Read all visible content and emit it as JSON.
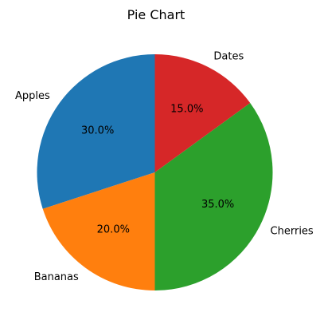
{
  "chart_data": {
    "type": "pie",
    "title": "Pie Chart",
    "labels": [
      "Apples",
      "Bananas",
      "Cherries",
      "Dates"
    ],
    "values": [
      30,
      20,
      35,
      15
    ],
    "percent_labels": [
      "30.0%",
      "20.0%",
      "35.0%",
      "15.0%"
    ],
    "colors": [
      "#1f77b4",
      "#ff7f0e",
      "#2ca02c",
      "#d62728"
    ],
    "start_angle_deg": 90,
    "direction": "counterclockwise",
    "legend": "none"
  }
}
